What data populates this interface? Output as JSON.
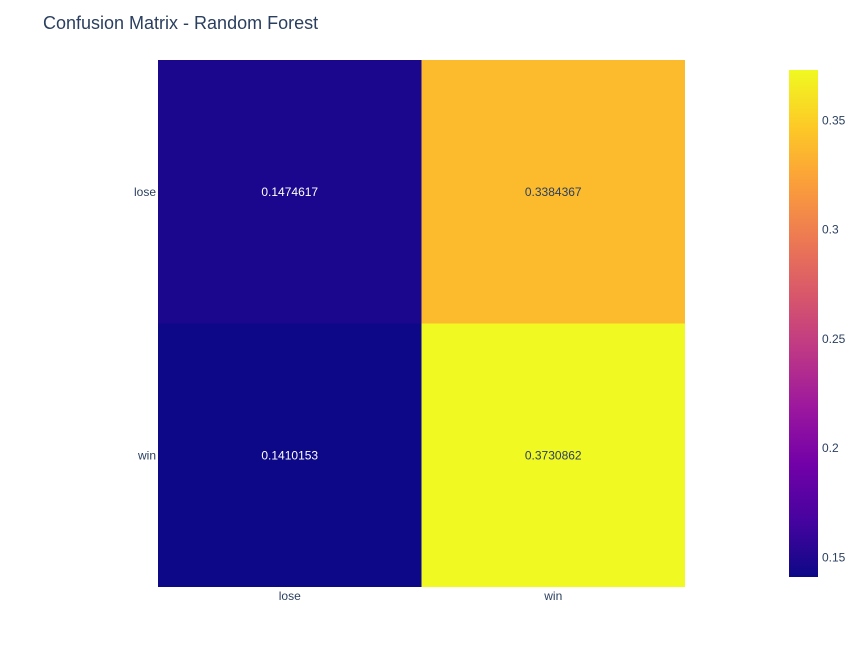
{
  "chart_data": {
    "type": "heatmap",
    "title": "Confusion Matrix - Random Forest",
    "x": [
      "lose",
      "win"
    ],
    "y": [
      "lose",
      "win"
    ],
    "z": [
      [
        0.1474617,
        0.3384367
      ],
      [
        0.1410153,
        0.3730862
      ]
    ],
    "colorscale": "Plasma",
    "colorbar": {
      "range": [
        0.1410153,
        0.3730862
      ],
      "ticks": [
        0.15,
        0.2,
        0.25,
        0.3,
        0.35
      ],
      "tick_labels": [
        "0.15",
        "0.2",
        "0.25",
        "0.3",
        "0.35"
      ]
    },
    "xlabel": "",
    "ylabel": "",
    "grid": false,
    "legend": "colorbar right"
  }
}
